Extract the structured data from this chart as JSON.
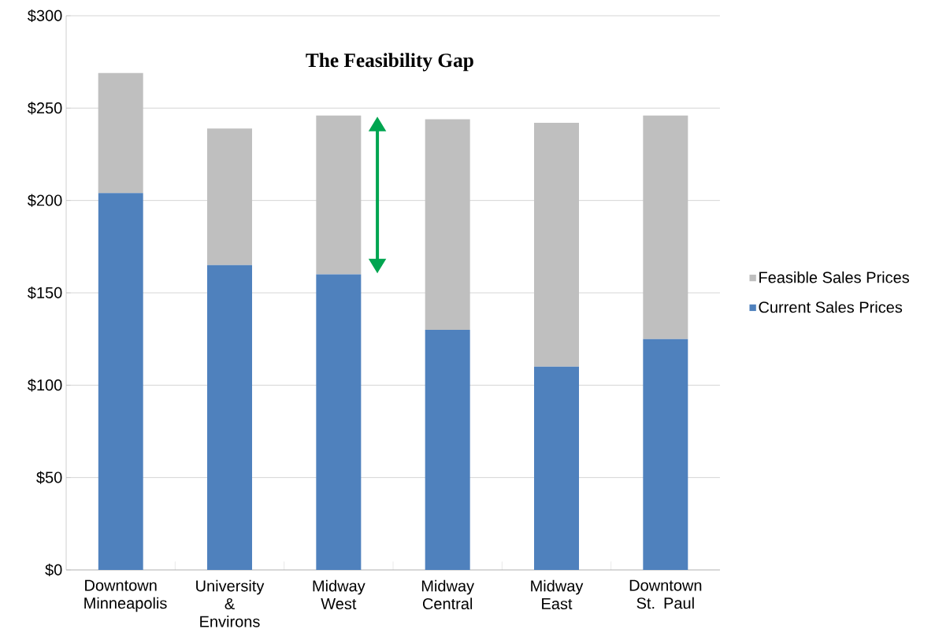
{
  "chart_data": {
    "type": "bar",
    "title": "The Feasibility Gap",
    "stacked": true,
    "categories": [
      "Downtown Minneapolis",
      "University & Environs",
      "Midway West",
      "Midway Central",
      "Midway East",
      "Downtown St. Paul"
    ],
    "series": [
      {
        "name": "Current Sales Prices",
        "color": "#4f81bd",
        "values": [
          204,
          165,
          160,
          130,
          110,
          125
        ]
      },
      {
        "name": "Feasible Sales Prices",
        "color": "#bfbfbf",
        "values": [
          65,
          74,
          86,
          114,
          132,
          121
        ]
      }
    ],
    "ylim": [
      0,
      300
    ],
    "yticks": [
      {
        "value": 0,
        "label": "$0"
      },
      {
        "value": 50,
        "label": "$50"
      },
      {
        "value": 100,
        "label": "$100"
      },
      {
        "value": 150,
        "label": "$150"
      },
      {
        "value": 200,
        "label": "$200"
      },
      {
        "value": 250,
        "label": "$250"
      },
      {
        "value": 300,
        "label": "$300"
      }
    ],
    "grid": "y",
    "legend": "right"
  }
}
